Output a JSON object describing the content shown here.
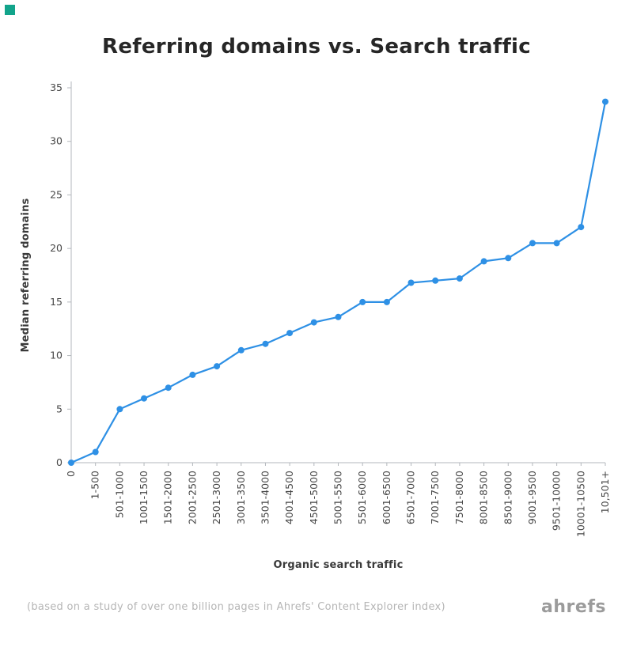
{
  "chart_data": {
    "type": "line",
    "title": "Referring domains vs. Search traffic",
    "xlabel": "Organic search traffic",
    "ylabel": "Median referring domains",
    "ylim": [
      0,
      35
    ],
    "yticks": [
      0,
      5,
      10,
      15,
      20,
      25,
      30,
      35
    ],
    "categories": [
      "0",
      "1-500",
      "501-1000",
      "1001-1500",
      "1501-2000",
      "2001-2500",
      "2501-3000",
      "3001-3500",
      "3501-4000",
      "4001-4500",
      "4501-5000",
      "5001-5500",
      "5501-6000",
      "6001-6500",
      "6501-7000",
      "7001-7500",
      "7501-8000",
      "8001-8500",
      "8501-9000",
      "9001-9500",
      "9501-10000",
      "10001-10500",
      "10,501+"
    ],
    "values": [
      0,
      1,
      5,
      6,
      7,
      8.2,
      9,
      10.5,
      11.1,
      12.1,
      13.1,
      13.6,
      15,
      15,
      16.8,
      17,
      17.2,
      18.8,
      19.1,
      20.5,
      20.5,
      22,
      33.7
    ],
    "line_color": "#2e90e5",
    "marker": "circle",
    "grid": false,
    "legend": false
  },
  "footer": {
    "note": "(based on a study of over one billion pages in Ahrefs' Content Explorer index)",
    "brand": "ahrefs"
  },
  "colors": {
    "accent_square": "#12a48b",
    "line": "#2e90e5",
    "axis_line": "#b3b7bc",
    "tick_text": "#474747",
    "axis_label_text": "#3a3a3a",
    "title_text": "#262626",
    "note_text": "#b5b5b5",
    "brand_text": "#9b9b9b"
  }
}
